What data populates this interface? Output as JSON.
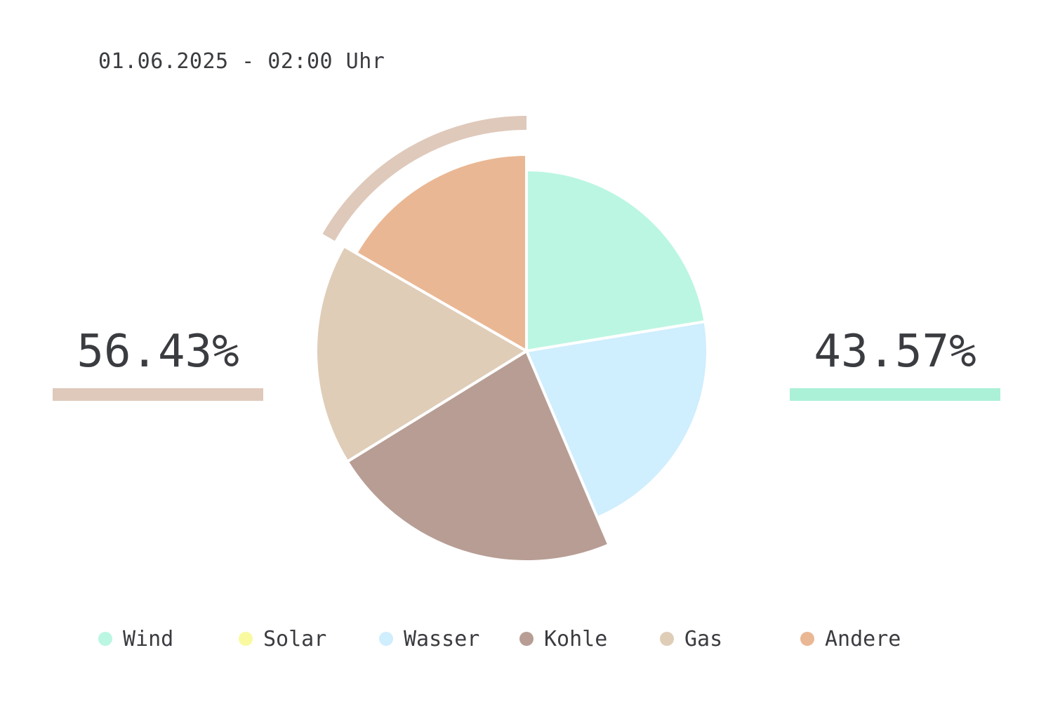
{
  "header": {
    "datetime": "01.06.2025 - 02:00 Uhr"
  },
  "summary": {
    "left": {
      "value": "56.43%",
      "color": "#dfc9bb"
    },
    "right": {
      "value": "43.57%",
      "color": "#abf1d7"
    }
  },
  "chart_data": {
    "type": "pie",
    "title": "",
    "categories": [
      "Wind",
      "Solar",
      "Wasser",
      "Kohle",
      "Gas",
      "Andere"
    ],
    "values": [
      22.4,
      0,
      21.2,
      22.6,
      17.1,
      16.7
    ],
    "colors": [
      "#bbf6e2",
      "#f9f9a0",
      "#cfeefe",
      "#b79d94",
      "#dfcdb8",
      "#eab794"
    ],
    "highlight": {
      "category": "Andere",
      "arc_color": "#dfc9bb"
    },
    "legend_position": "bottom"
  },
  "legend": [
    {
      "label": "Wind",
      "color": "#bbf6e2"
    },
    {
      "label": "Solar",
      "color": "#f9f9a0"
    },
    {
      "label": "Wasser",
      "color": "#cfeefe"
    },
    {
      "label": "Kohle",
      "color": "#b79d94"
    },
    {
      "label": "Gas",
      "color": "#dfcdb8"
    },
    {
      "label": "Andere",
      "color": "#eab794"
    }
  ]
}
